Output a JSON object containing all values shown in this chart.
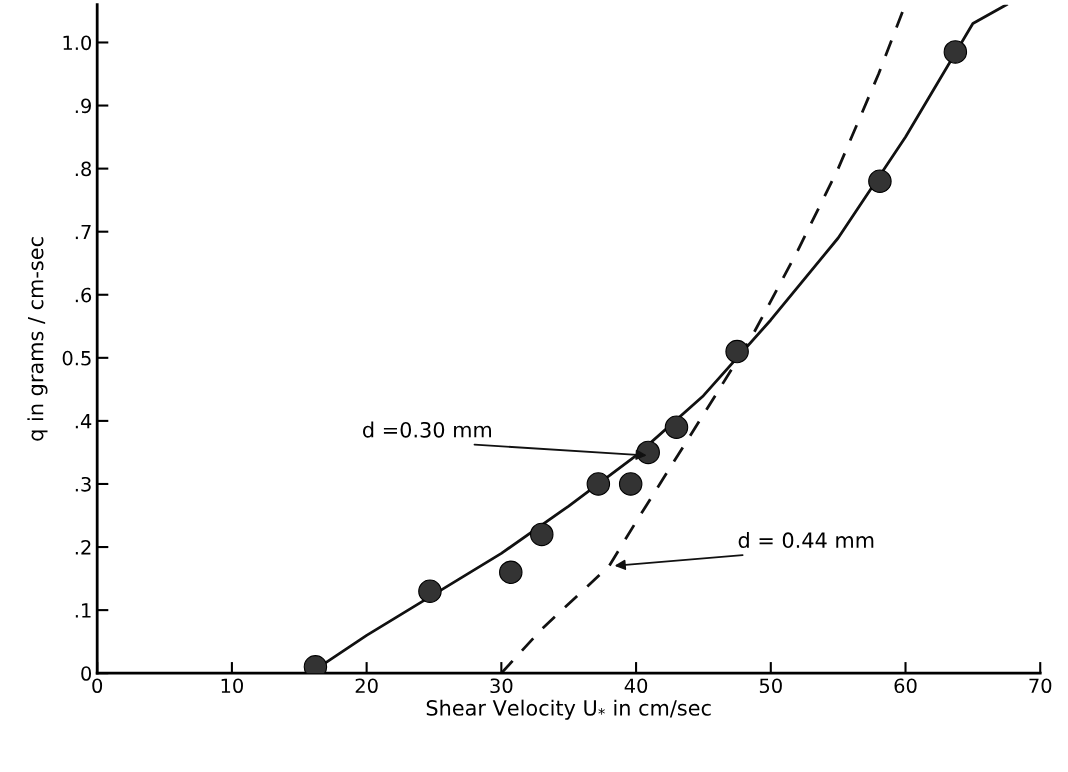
{
  "chart_data": {
    "type": "scatter",
    "xlabel": "Shear Velocity U$_{*}$ in cm/sec",
    "ylabel": "q in grams / cm-sec",
    "xlim": [
      0,
      70
    ],
    "ylim": [
      0,
      1.06
    ],
    "xticks": [
      0,
      10,
      20,
      30,
      40,
      50,
      60,
      70
    ],
    "yticks": [
      0,
      {
        "value": 0.1,
        "label": ".1"
      },
      {
        "value": 0.2,
        "label": ".2"
      },
      {
        "value": 0.3,
        "label": ".3"
      },
      {
        "value": 0.4,
        "label": ".4"
      },
      {
        "value": 0.5,
        "label": "0.5"
      },
      {
        "value": 0.6,
        "label": ".6"
      },
      {
        "value": 0.7,
        "label": ".7"
      },
      {
        "value": 0.8,
        "label": ".8"
      },
      {
        "value": 0.9,
        "label": ".9"
      },
      {
        "value": 1.0,
        "label": "1.0"
      }
    ],
    "grid": false,
    "legend": false,
    "series": [
      {
        "color": "#333333",
        "marker": "circle",
        "x": [
          16.2,
          24.7,
          30.7,
          33.0,
          37.2,
          39.6,
          40.9,
          43.0,
          47.5,
          58.1,
          63.7
        ],
        "values": [
          0.01,
          0.13,
          0.16,
          0.22,
          0.3,
          0.3,
          0.35,
          0.39,
          0.51,
          0.78,
          0.985
        ]
      },
      {
        "type": "line",
        "color": "#111111",
        "marker": "none",
        "line_style": "solid",
        "x": [
          16.5,
          20,
          25,
          30,
          35,
          40,
          45,
          50,
          55,
          60,
          65,
          67.5
        ],
        "values": [
          0.01,
          0.06,
          0.125,
          0.19,
          0.265,
          0.345,
          0.44,
          0.56,
          0.69,
          0.85,
          1.03,
          1.06
        ]
      },
      {
        "type": "line",
        "color": "#111111",
        "marker": "none",
        "line_style": "dashed",
        "x": [
          30,
          33,
          36,
          38,
          40,
          45,
          48.5,
          52,
          55,
          58,
          59.8
        ],
        "values": [
          0.0,
          0.07,
          0.13,
          0.17,
          0.24,
          0.41,
          0.53,
          0.67,
          0.8,
          0.95,
          1.05
        ]
      }
    ],
    "annotations": [
      {
        "text": "d =0.30 mm",
        "x": 41,
        "y": 0.345
      },
      {
        "text": "d = 0.44 mm",
        "x": 38.2,
        "y": 0.17
      }
    ]
  }
}
